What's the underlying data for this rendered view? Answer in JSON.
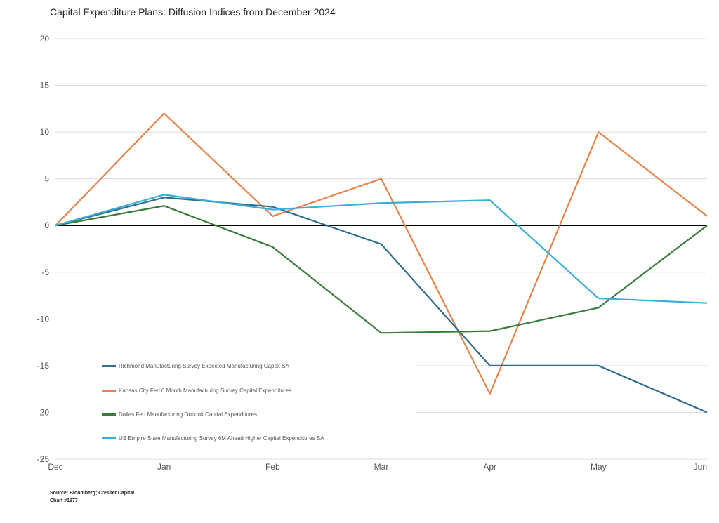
{
  "chart_data": {
    "type": "line",
    "title": "Capital Expenditure Plans: Diffusion Indices from December 2024",
    "categories": [
      "Dec",
      "Jan",
      "Feb",
      "Mar",
      "Apr",
      "May",
      "Jun"
    ],
    "ylim": [
      -25,
      20
    ],
    "yticks": [
      "20",
      "15",
      "10",
      "5",
      "0",
      "-5",
      "-10",
      "-15",
      "-20",
      "-25"
    ],
    "grid": true,
    "legend_position": "bottom-left",
    "series": [
      {
        "name": "Richmond Manufacturing Survey Expected Manufacturing Capex SA",
        "color": "#2f6e8c",
        "values": [
          0,
          3,
          2,
          -2,
          -15,
          -15,
          -20
        ]
      },
      {
        "name": "Kansas City Fed 6 Month Manufacturing Survey Capital Expenditures",
        "color": "#e8834a",
        "values": [
          0,
          12,
          1,
          5,
          -18,
          10,
          1
        ]
      },
      {
        "name": "Dallas Fed Manufacturing Outlook Capital Expenditures",
        "color": "#3a7d3a",
        "values": [
          0,
          2.1,
          -2.3,
          -11.5,
          -11.3,
          -8.8,
          0
        ]
      },
      {
        "name": "US Empire State Manufacturing Survey 6M Ahead Higher Capital Expenditures SA",
        "color": "#3aaed8",
        "values": [
          0,
          3.3,
          1.7,
          2.4,
          2.7,
          -7.8,
          -8.3
        ]
      }
    ]
  },
  "source": {
    "line1": "Source: Bloomberg; Cresset Capital.",
    "line2": "Chart #1977"
  }
}
